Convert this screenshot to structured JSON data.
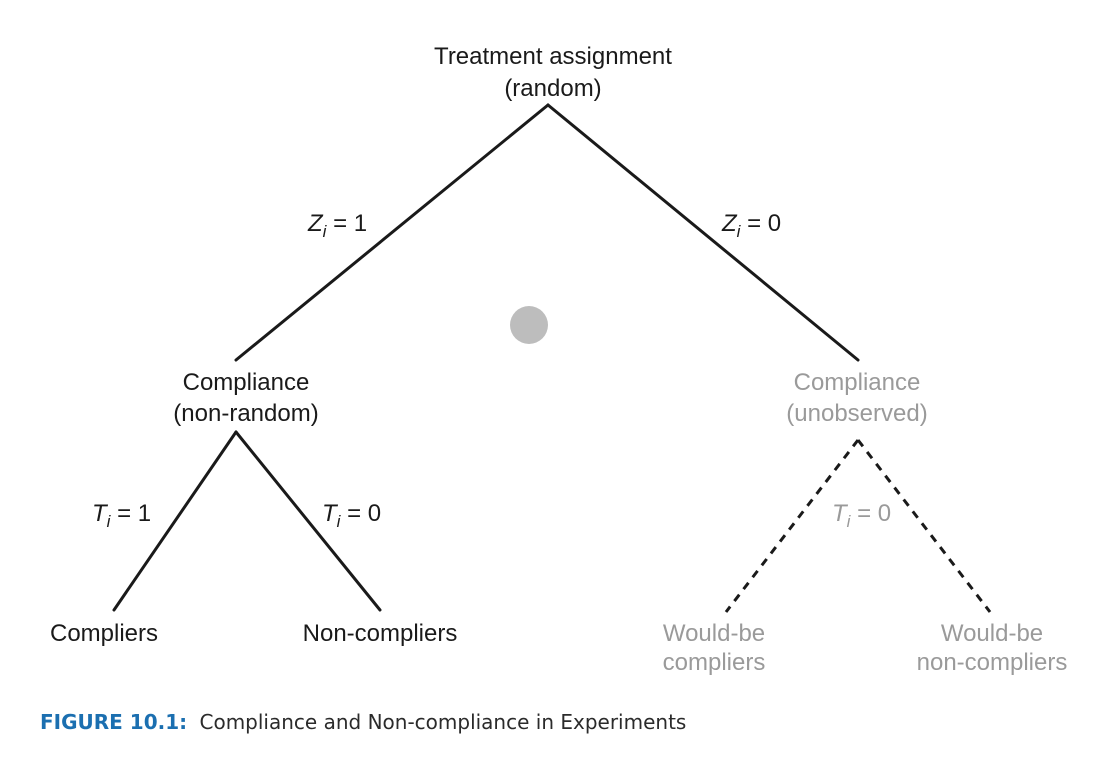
{
  "colors": {
    "line": "#1a1a1a",
    "muted": "#9a9a9a",
    "dot": "#bdbdbd",
    "caption_label": "#1b6fb0"
  },
  "nodes": {
    "root": {
      "line1": "Treatment assignment",
      "line2": "(random)"
    },
    "left": {
      "line1": "Compliance",
      "line2": "(non-random)"
    },
    "right": {
      "line1": "Compliance",
      "line2": "(unobserved)"
    },
    "leaf_compliers": {
      "line1": "Compliers"
    },
    "leaf_noncompliers": {
      "line1": "Non-compliers"
    },
    "leaf_would_compliers": {
      "line1": "Would-be",
      "line2": "compliers"
    },
    "leaf_would_noncompliers": {
      "line1": "Would-be",
      "line2": "non-compliers"
    }
  },
  "edge_labels": {
    "z1": {
      "var": "Z",
      "sub": "i",
      "rest": " = 1"
    },
    "z0": {
      "var": "Z",
      "sub": "i",
      "rest": " = 0"
    },
    "t1": {
      "var": "T",
      "sub": "i",
      "rest": " = 1"
    },
    "t0_left": {
      "var": "T",
      "sub": "i",
      "rest": " = 0"
    },
    "t0_right": {
      "var": "T",
      "sub": "i",
      "rest": " = 0"
    }
  },
  "caption": {
    "label": "FIGURE 10.1:",
    "text": "Compliance and Non-compliance in Experiments"
  }
}
